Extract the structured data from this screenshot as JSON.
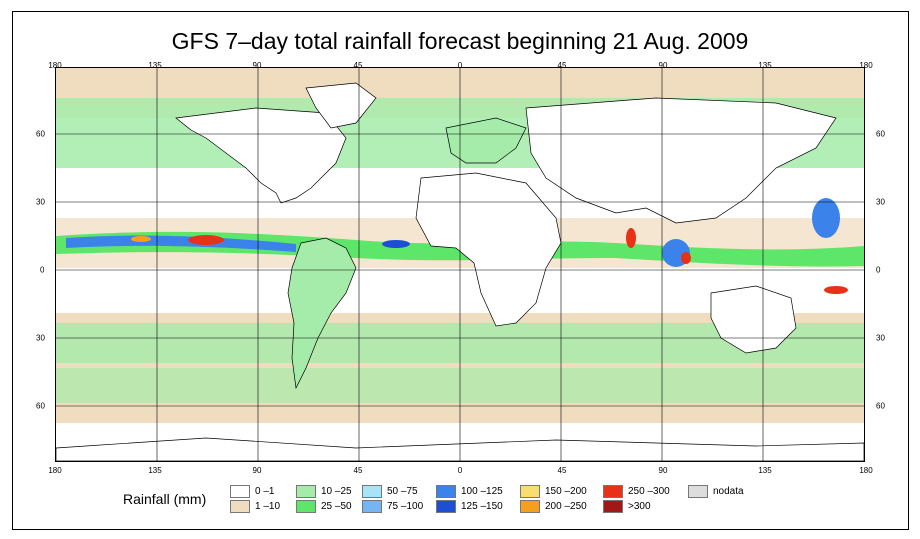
{
  "title": "GFS 7–day total rainfall forecast beginning 21 Aug. 2009",
  "map": {
    "top_ticks": [
      "180",
      "135",
      "90",
      "45",
      "0",
      "45",
      "90",
      "135",
      "180"
    ],
    "bottom_ticks": [
      "180",
      "135",
      "90",
      "45",
      "0",
      "45",
      "90",
      "135",
      "180"
    ],
    "left_lat_labels": [
      "60",
      "30",
      "0",
      "30",
      "60"
    ],
    "right_lat_labels": [
      "60",
      "30",
      "0",
      "30",
      "60"
    ]
  },
  "legend": {
    "title": "Rainfall (mm)",
    "items": [
      {
        "label": "0 –1",
        "color": "#ffffff"
      },
      {
        "label": "1 –10",
        "color": "#f0dcbe"
      },
      {
        "label": "10 –25",
        "color": "#a5ecaa"
      },
      {
        "label": "25 –50",
        "color": "#5ee66a"
      },
      {
        "label": "50 –75",
        "color": "#a8e4f8"
      },
      {
        "label": "75 –100",
        "color": "#74b6f4"
      },
      {
        "label": "100 –125",
        "color": "#3b83ea"
      },
      {
        "label": "125 –150",
        "color": "#1d4fd4"
      },
      {
        "label": "150 –200",
        "color": "#f8de70"
      },
      {
        "label": "200 –250",
        "color": "#f5a01c"
      },
      {
        "label": "250 –300",
        "color": "#e83218"
      },
      {
        "label": ">300",
        "color": "#a01818"
      },
      {
        "label": "nodata",
        "color": "#dddddd"
      }
    ]
  }
}
